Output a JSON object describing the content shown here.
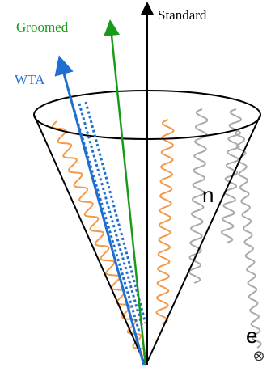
{
  "labels": {
    "standard": "Standard",
    "groomed": "Groomed",
    "wta": "WTA",
    "cut_text_1": "n",
    "cut_text_2": "e",
    "beam_symbol": "⊗"
  }
}
